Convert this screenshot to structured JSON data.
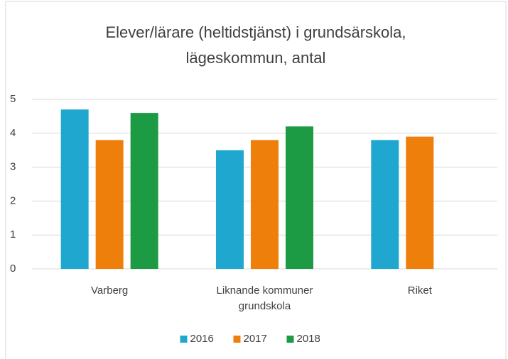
{
  "chart_data": {
    "type": "bar",
    "title": [
      "Elever/lärare (heltidstjänst) i grundsärskola,",
      "lägeskommun, antal"
    ],
    "categories": [
      "Varberg",
      "Liknande kommuner grundskola",
      "Riket"
    ],
    "series": [
      {
        "name": "2016",
        "color": "#1fa7d0",
        "values": [
          4.7,
          3.5,
          3.8
        ]
      },
      {
        "name": "2017",
        "color": "#ef7f0b",
        "values": [
          3.8,
          3.8,
          3.9
        ]
      },
      {
        "name": "2018",
        "color": "#1c9a44",
        "values": [
          4.6,
          4.2,
          null
        ]
      }
    ],
    "ylim": [
      0,
      5
    ],
    "yticks": [
      0,
      1,
      2,
      3,
      4,
      5
    ],
    "grid": true,
    "legend": "bottom"
  }
}
